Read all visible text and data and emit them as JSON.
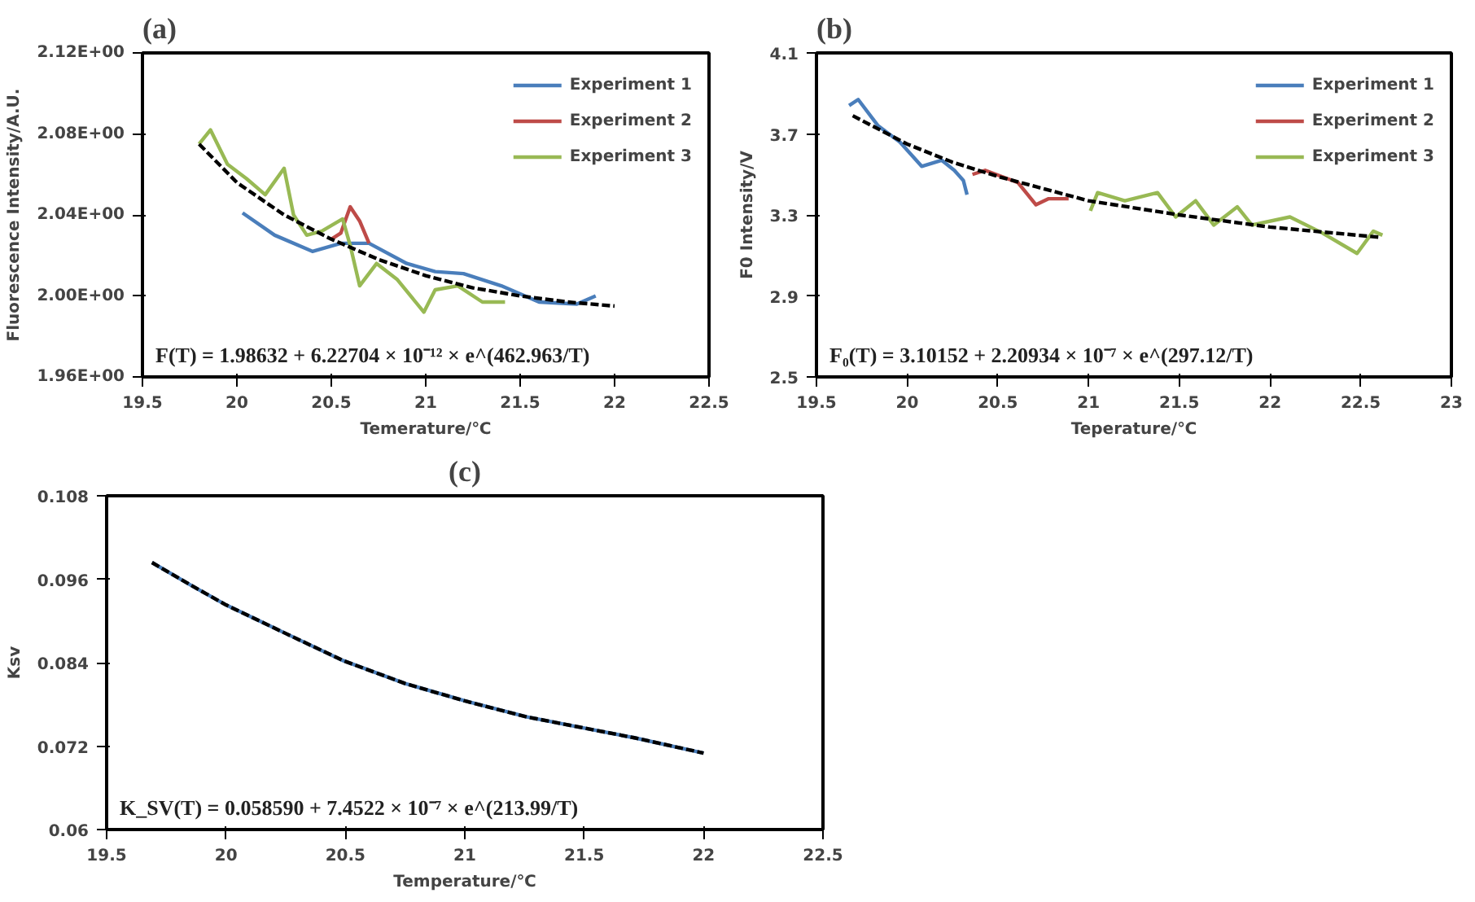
{
  "chart_data": [
    {
      "type": "line",
      "title": "(a)",
      "xlabel": "Temerature/℃",
      "ylabel": "Fluorescence Intensity/A.U.",
      "xlim": [
        19.5,
        22.5
      ],
      "ylim": [
        1.96,
        2.12
      ],
      "xticks": [
        19.5,
        20,
        20.5,
        21,
        21.5,
        22,
        22.5
      ],
      "yticks": [
        {
          "value": 1.96,
          "label": "1.96E+00"
        },
        {
          "value": 2.0,
          "label": "2.00E+00"
        },
        {
          "value": 2.04,
          "label": "2.04E+00"
        },
        {
          "value": 2.08,
          "label": "2.08E+00"
        },
        {
          "value": 2.12,
          "label": "2.12E+00"
        }
      ],
      "grid": false,
      "legend": "top right",
      "annotations": [
        "F(T) = 1.98632 + 6.22704 × 10⁻¹² × e^(462.963/T)"
      ],
      "series": [
        {
          "name": "Experiment 1",
          "color": "#4a7ebb",
          "x": [
            20.03,
            20.2,
            20.4,
            20.55,
            20.7,
            20.9,
            21.05,
            21.2,
            21.4,
            21.6,
            21.8,
            21.9
          ],
          "values": [
            2.041,
            2.03,
            2.022,
            2.026,
            2.026,
            2.016,
            2.012,
            2.011,
            2.005,
            1.997,
            1.996,
            2.0
          ]
        },
        {
          "name": "Experiment 2",
          "color": "#be4b48",
          "x": [
            20.5,
            20.55,
            20.6,
            20.65,
            20.7
          ],
          "values": [
            2.028,
            2.031,
            2.044,
            2.037,
            2.026
          ]
        },
        {
          "name": "Experiment 3",
          "color": "#98b954",
          "x": [
            19.8,
            19.86,
            19.95,
            20.05,
            20.15,
            20.25,
            20.3,
            20.37,
            20.45,
            20.56,
            20.6,
            20.65,
            20.74,
            20.85,
            20.99,
            21.05,
            21.17,
            21.3,
            21.42
          ],
          "values": [
            2.075,
            2.082,
            2.065,
            2.058,
            2.05,
            2.063,
            2.04,
            2.03,
            2.032,
            2.038,
            2.025,
            2.005,
            2.016,
            2.008,
            1.992,
            2.003,
            2.005,
            1.997,
            1.997
          ]
        },
        {
          "color": "#000000",
          "line_style": "dashed",
          "x": [
            19.8,
            20.0,
            20.25,
            20.5,
            20.75,
            21.0,
            21.25,
            21.5,
            21.75,
            22.0
          ],
          "values": [
            2.075,
            2.056,
            2.04,
            2.028,
            2.018,
            2.01,
            2.004,
            2.0,
            1.997,
            1.995
          ]
        }
      ]
    },
    {
      "type": "line",
      "title": "(b)",
      "xlabel": "Teperature/℃",
      "ylabel": "F0 Intensity/V",
      "xlim": [
        19.5,
        23
      ],
      "ylim": [
        2.5,
        4.1
      ],
      "xticks": [
        19.5,
        20,
        20.5,
        21,
        21.5,
        22,
        22.5,
        23
      ],
      "yticks": [
        2.5,
        2.9,
        3.3,
        3.7,
        4.1
      ],
      "grid": false,
      "legend": "top right",
      "annotations": [
        "F₀(T) = 3.10152 + 2.20934 × 10⁻⁷ × e^(297.12/T)"
      ],
      "series": [
        {
          "name": "Experiment 1",
          "color": "#4a7ebb",
          "x": [
            19.68,
            19.73,
            19.84,
            19.96,
            20.08,
            20.19,
            20.26,
            20.31,
            20.33
          ],
          "values": [
            3.84,
            3.87,
            3.74,
            3.66,
            3.54,
            3.57,
            3.52,
            3.47,
            3.4
          ]
        },
        {
          "name": "Experiment 2",
          "color": "#be4b48",
          "x": [
            20.36,
            20.43,
            20.61,
            20.71,
            20.78,
            20.89
          ],
          "values": [
            3.5,
            3.52,
            3.46,
            3.35,
            3.38,
            3.38
          ]
        },
        {
          "name": "Experiment 3",
          "color": "#98b954",
          "x": [
            21.01,
            21.05,
            21.2,
            21.38,
            21.48,
            21.59,
            21.69,
            21.82,
            21.9,
            22.11,
            22.29,
            22.48,
            22.57,
            22.62
          ],
          "values": [
            3.32,
            3.41,
            3.37,
            3.41,
            3.29,
            3.37,
            3.25,
            3.34,
            3.25,
            3.29,
            3.21,
            3.11,
            3.22,
            3.2
          ]
        },
        {
          "color": "#000000",
          "line_style": "dashed",
          "x": [
            19.7,
            20.0,
            20.25,
            20.5,
            20.75,
            21.0,
            21.5,
            22.0,
            22.6
          ],
          "values": [
            3.79,
            3.65,
            3.56,
            3.49,
            3.43,
            3.37,
            3.3,
            3.24,
            3.19
          ]
        }
      ]
    },
    {
      "type": "line",
      "title": "(c)",
      "xlabel": "Temperature/℃",
      "ylabel": "Ksv",
      "xlim": [
        19.5,
        22.5
      ],
      "ylim": [
        0.06,
        0.108
      ],
      "xticks": [
        19.5,
        20,
        20.5,
        21,
        21.5,
        22,
        22.5
      ],
      "yticks": [
        0.06,
        0.072,
        0.084,
        0.096,
        0.108
      ],
      "grid": false,
      "annotations": [
        "K_SV(T) = 0.058590 + 7.4522 × 10⁻⁷ × e^(213.99/T)"
      ],
      "series": [
        {
          "color": "#4a7ebb",
          "x": [
            19.69,
            19.85,
            20.0,
            20.25,
            20.49,
            20.75,
            21.0,
            21.26,
            21.5,
            21.71,
            22.0
          ],
          "values": [
            0.0984,
            0.0952,
            0.0923,
            0.0882,
            0.0843,
            0.081,
            0.0785,
            0.0762,
            0.0746,
            0.0732,
            0.071
          ]
        },
        {
          "color": "#000000",
          "line_style": "dashed",
          "x": [
            19.69,
            19.85,
            20.0,
            20.25,
            20.49,
            20.75,
            21.0,
            21.26,
            21.5,
            21.71,
            22.0
          ],
          "values": [
            0.0984,
            0.0952,
            0.0923,
            0.0882,
            0.0843,
            0.081,
            0.0785,
            0.0762,
            0.0746,
            0.0732,
            0.071
          ]
        }
      ]
    }
  ]
}
